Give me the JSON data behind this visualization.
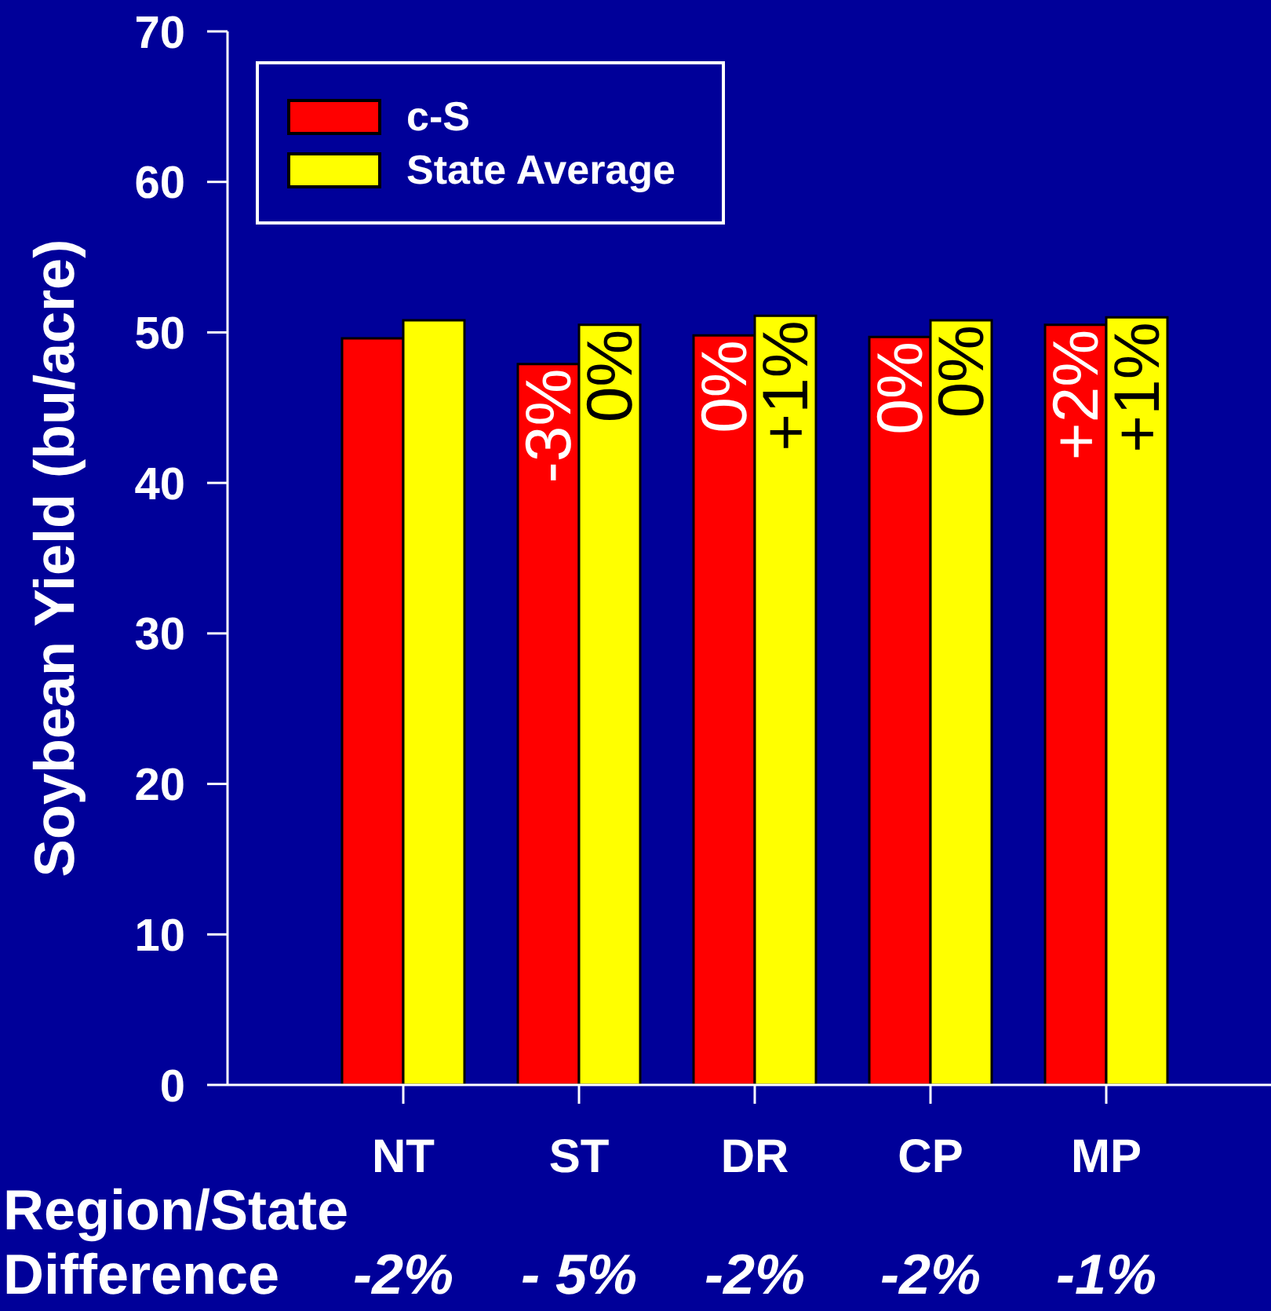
{
  "chart_data": {
    "type": "bar",
    "ylabel": "Soybean Yield (bu/acre)",
    "categories": [
      "NT",
      "ST",
      "DR",
      "CP",
      "MP"
    ],
    "series": [
      {
        "name": "c-S",
        "color": "#ff0000",
        "values": [
          49.6,
          47.9,
          49.8,
          49.7,
          50.5
        ]
      },
      {
        "name": "State Average",
        "color": "#ffff00",
        "values": [
          50.8,
          50.5,
          51.1,
          50.8,
          51.0
        ]
      }
    ],
    "ylim": [
      0,
      70
    ],
    "yticks": [
      0,
      10,
      20,
      30,
      40,
      50,
      60,
      70
    ],
    "grid": false,
    "legend": "top left",
    "annotations": [
      "Region/State Difference",
      "-2%",
      "- 5%",
      "-2%",
      "-2%",
      "-1%",
      {
        "text": "-3%",
        "x": "ST",
        "y": 47.9
      },
      {
        "text": "0%",
        "x": "ST",
        "y": 50.5
      },
      {
        "text": "0%",
        "x": "DR",
        "y": 49.8
      },
      {
        "text": "+1%",
        "x": "DR",
        "y": 51.1
      },
      {
        "text": "0%",
        "x": "CP",
        "y": 49.7
      },
      {
        "text": "0%",
        "x": "CP",
        "y": 50.8
      },
      {
        "text": "+2%",
        "x": "MP",
        "y": 50.5
      },
      {
        "text": "+1%",
        "x": "MP",
        "y": 51.0
      }
    ]
  }
}
